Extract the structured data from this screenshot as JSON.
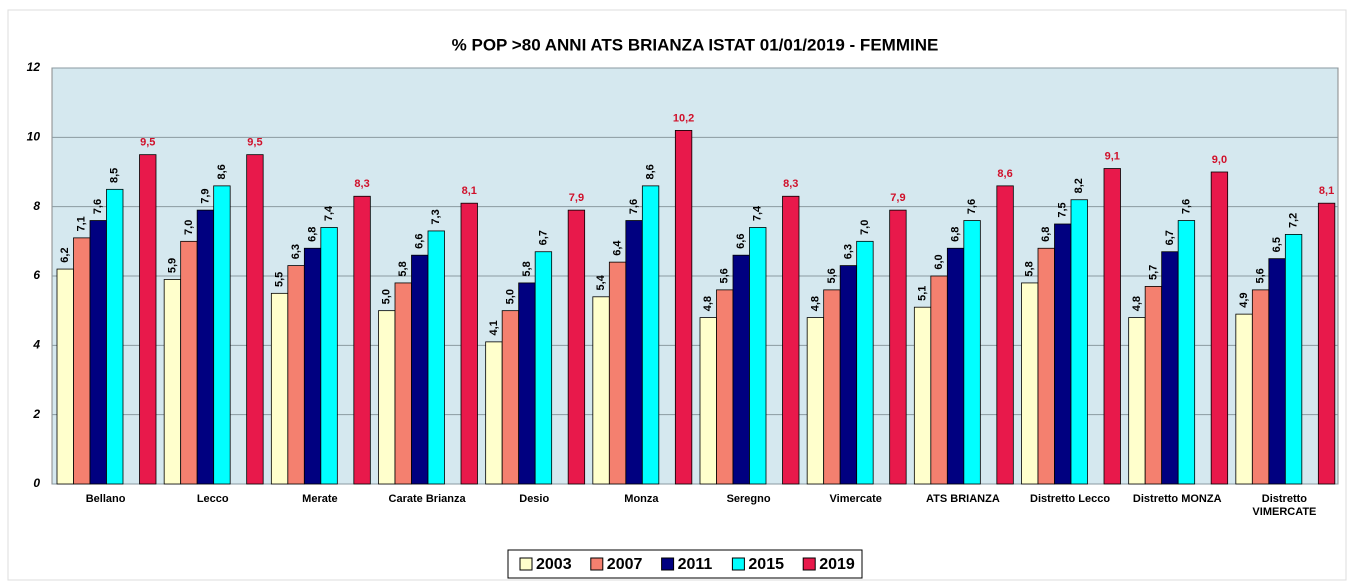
{
  "chart_data": {
    "type": "bar",
    "title": "% POP >80 ANNI ATS BRIANZA ISTAT 01/01/2019 -  FEMMINE",
    "categories": [
      "Bellano",
      "Lecco",
      "Merate",
      "Carate Brianza",
      "Desio",
      "Monza",
      "Seregno",
      "Vimercate",
      "ATS BRIANZA",
      "Distretto Lecco",
      "Distretto MONZA",
      "Distretto VIMERCATE"
    ],
    "series": [
      {
        "name": "2003",
        "color": "#ffffcc",
        "values": [
          6.2,
          5.9,
          5.5,
          5.0,
          4.1,
          5.4,
          4.8,
          4.8,
          5.1,
          5.8,
          4.8,
          4.9
        ],
        "value_labels": [
          "6,2",
          "5,9",
          "5,5",
          "5,0",
          "4,1",
          "5,4",
          "4,8",
          "4,8",
          "5,1",
          "5,8",
          "4,8",
          "4,9"
        ]
      },
      {
        "name": "2007",
        "color": "#f4806f",
        "values": [
          7.1,
          7.0,
          6.3,
          5.8,
          5.0,
          6.4,
          5.6,
          5.6,
          6.0,
          6.8,
          5.7,
          5.6
        ],
        "value_labels": [
          "7,1",
          "7,0",
          "6,3",
          "5,8",
          "5,0",
          "6,4",
          "5,6",
          "5,6",
          "6,0",
          "6,8",
          "5,7",
          "5,6"
        ]
      },
      {
        "name": "2011",
        "color": "#000080",
        "values": [
          7.6,
          7.9,
          6.8,
          6.6,
          5.8,
          7.6,
          6.6,
          6.3,
          6.8,
          7.5,
          6.7,
          6.5
        ],
        "value_labels": [
          "7,6",
          "7,9",
          "6,8",
          "6,6",
          "5,8",
          "7,6",
          "6,6",
          "6,3",
          "6,8",
          "7,5",
          "6,7",
          "6,5"
        ]
      },
      {
        "name": "2015",
        "color": "#00ffff",
        "values": [
          8.5,
          8.6,
          7.4,
          7.3,
          6.7,
          8.6,
          7.4,
          7.0,
          7.6,
          8.2,
          7.6,
          7.2
        ],
        "value_labels": [
          "8,5",
          "8,6",
          "7,4",
          "7,3",
          "6,7",
          "8,6",
          "7,4",
          "7,0",
          "7,6",
          "8,2",
          "7,6",
          "7,2"
        ]
      },
      {
        "name": "2019",
        "color": "#e8194b",
        "values": [
          9.5,
          9.5,
          8.3,
          8.1,
          7.9,
          10.2,
          8.3,
          7.9,
          8.6,
          9.1,
          9.0,
          8.1
        ],
        "value_labels": [
          "9,5",
          "9,5",
          "8,3",
          "8,1",
          "7,9",
          "10,2",
          "8,3",
          "7,9",
          "8,6",
          "9,1",
          "9,0",
          "8,1"
        ]
      }
    ],
    "ylim": [
      0,
      12
    ],
    "yticks": [
      0,
      2,
      4,
      6,
      8,
      10,
      12
    ],
    "grid": true,
    "legend": "bottom"
  }
}
